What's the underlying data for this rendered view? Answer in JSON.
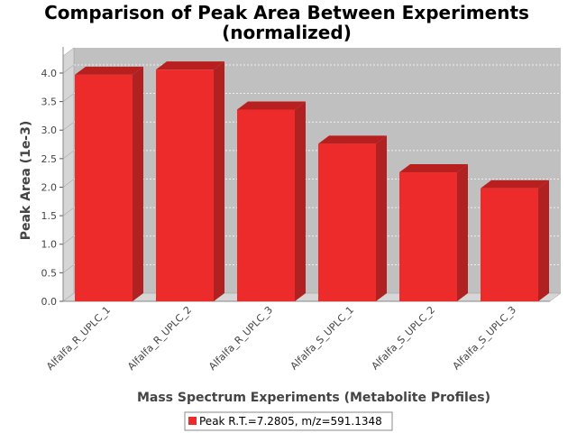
{
  "chart_data": {
    "type": "bar",
    "title": "Comparison of Peak Area Between Experiments",
    "subtitle": "(normalized)",
    "xlabel": "Mass Spectrum Experiments (Metabolite Profiles)",
    "ylabel": "Peak Area (1e-3)",
    "categories": [
      "Alfalfa_R_UPLC_1",
      "Alfalfa_R_UPLC_2",
      "Alfalfa_R_UPLC_3",
      "Alfalfa_S_UPLC_1",
      "Alfalfa_S_UPLC_2",
      "Alfalfa_S_UPLC_3"
    ],
    "series": [
      {
        "name": "Peak R.T.=7.2805, m/z=591.1348",
        "values": [
          3.97,
          4.06,
          3.36,
          2.76,
          2.26,
          1.98
        ]
      }
    ],
    "ylim": [
      0,
      4.3
    ],
    "yticks": [
      "0.0",
      "0.5",
      "1.0",
      "1.5",
      "2.0",
      "2.5",
      "3.0",
      "3.5",
      "4.0"
    ],
    "grid": true,
    "legend_position": "bottom",
    "colors": {
      "bar_front": "#ee2b2b",
      "bar_top": "#b81f1f",
      "bar_side": "#b02222",
      "plot_back": "#c0c0c0",
      "plot_wall": "#d6d6d6",
      "grid": "#ffffff"
    }
  }
}
